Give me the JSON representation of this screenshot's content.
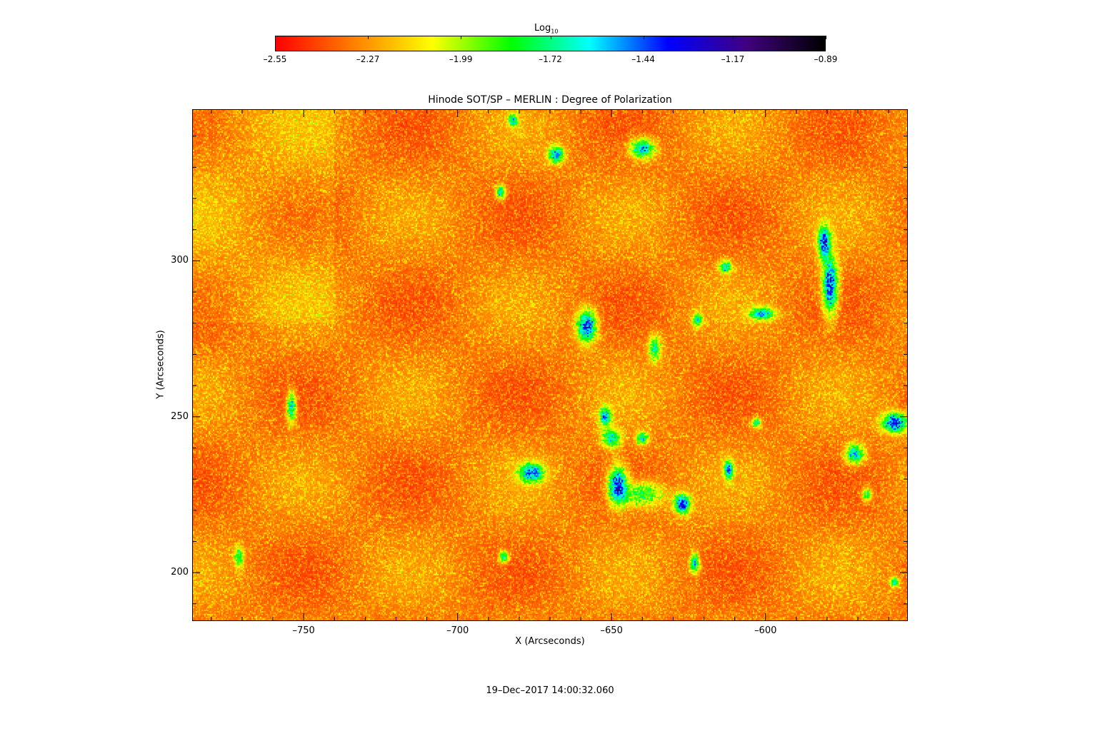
{
  "chart_data": {
    "type": "heatmap",
    "title": "Hinode SOT/SP – MERLIN : Degree of Polarization",
    "xlabel": "X (Arcseconds)",
    "ylabel": "Y (Arcseconds)",
    "xlim": [
      -786,
      -554
    ],
    "ylim": [
      184.7,
      348.4
    ],
    "x_ticks": [
      -750,
      -700,
      -650,
      -600
    ],
    "x_tick_labels": [
      "–750",
      "–700",
      "–650",
      "–600"
    ],
    "y_ticks": [
      200,
      250,
      300
    ],
    "y_tick_labels": [
      "200",
      "250",
      "300"
    ],
    "colorbar": {
      "label_base": "Log",
      "label_sub": "10",
      "range": [
        -2.55,
        -0.89
      ],
      "ticks": [
        -2.55,
        -2.27,
        -1.99,
        -1.72,
        -1.44,
        -1.17,
        -0.89
      ],
      "tick_labels": [
        "–2.55",
        "–2.27",
        "–1.99",
        "–1.72",
        "–1.44",
        "–1.17",
        "–0.89"
      ],
      "colormap": [
        "#ff0000",
        "#ff8000",
        "#ffff00",
        "#00ff00",
        "#00ffff",
        "#0000ff",
        "#400080",
        "#000000"
      ],
      "position": "top"
    },
    "grid": false,
    "timestamp": "19–Dec–2017 14:00:32.060"
  }
}
